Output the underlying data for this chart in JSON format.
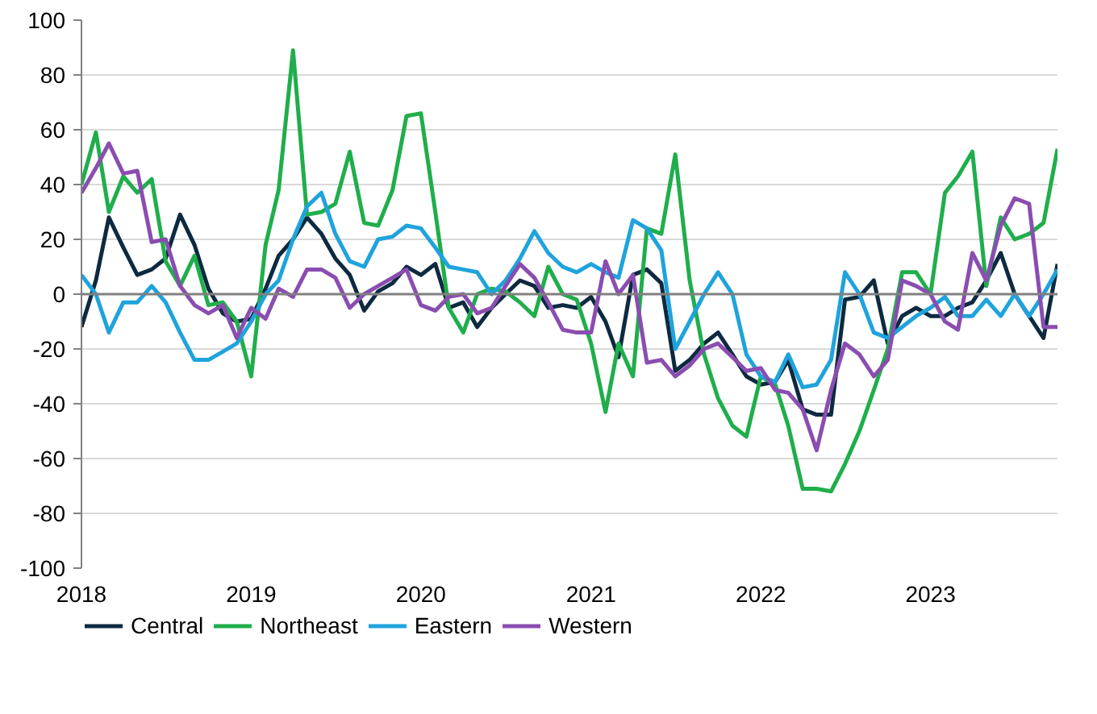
{
  "chart_data": {
    "type": "line",
    "x": [
      "2018-01",
      "2018-02",
      "2018-03",
      "2018-04",
      "2018-05",
      "2018-06",
      "2018-07",
      "2018-08",
      "2018-09",
      "2018-10",
      "2018-11",
      "2018-12",
      "2019-01",
      "2019-02",
      "2019-03",
      "2019-04",
      "2019-05",
      "2019-06",
      "2019-07",
      "2019-08",
      "2019-09",
      "2019-10",
      "2019-11",
      "2019-12",
      "2020-01",
      "2020-02",
      "2020-03",
      "2020-04",
      "2020-05",
      "2020-06",
      "2020-07",
      "2020-08",
      "2020-09",
      "2020-10",
      "2020-11",
      "2020-12",
      "2021-01",
      "2021-02",
      "2021-03",
      "2021-04",
      "2021-05",
      "2021-06",
      "2021-07",
      "2021-08",
      "2021-09",
      "2021-10",
      "2021-11",
      "2021-12",
      "2022-01",
      "2022-02",
      "2022-03",
      "2022-04",
      "2022-05",
      "2022-06",
      "2022-07",
      "2022-08",
      "2022-09",
      "2022-10",
      "2022-11",
      "2022-12",
      "2023-01",
      "2023-02",
      "2023-03",
      "2023-04",
      "2023-05",
      "2023-06",
      "2023-07",
      "2023-08",
      "2023-09",
      "2023-10"
    ],
    "xlim": [
      "2018-01",
      "2023-10"
    ],
    "xticks": [
      {
        "value": "2018-01",
        "label": "2018"
      },
      {
        "value": "2019-01",
        "label": "2019"
      },
      {
        "value": "2020-01",
        "label": "2020"
      },
      {
        "value": "2021-01",
        "label": "2021"
      },
      {
        "value": "2022-01",
        "label": "2022"
      },
      {
        "value": "2023-01",
        "label": "2023"
      }
    ],
    "ylim": [
      -100,
      100
    ],
    "yticks": [
      -100,
      -80,
      -60,
      -40,
      -20,
      0,
      20,
      40,
      60,
      80,
      100
    ],
    "grid": "y",
    "legend": "bottom",
    "line_style": "solid",
    "ref_lines": [
      {
        "axis": "y",
        "value": 0,
        "label": null,
        "color": "#808080"
      }
    ],
    "series": [
      {
        "name": "Central",
        "color": "#0d2a40",
        "values": [
          -12,
          5,
          28,
          17,
          7,
          9,
          13,
          29,
          18,
          2,
          -7,
          -10,
          -9,
          2,
          14,
          20,
          28,
          22,
          13,
          7,
          -6,
          1,
          4,
          10,
          7,
          11,
          -5,
          -3,
          -12,
          -5,
          0,
          5,
          3,
          -5,
          -4,
          -5,
          -1,
          -10,
          -23,
          7,
          9,
          4,
          -28,
          -24,
          -18,
          -14,
          -22,
          -30,
          -33,
          -32,
          -24,
          -42,
          -44,
          -44,
          -2,
          -1,
          5,
          -18,
          -8,
          -5,
          -8,
          -8,
          -5,
          -3,
          5,
          15,
          0,
          -8,
          -16,
          11
        ]
      },
      {
        "name": "Northeast",
        "color": "#1fae4b",
        "values": [
          40,
          59,
          30,
          43,
          37,
          42,
          12,
          3,
          14,
          -4,
          -3,
          -10,
          -30,
          18,
          38,
          89,
          29,
          30,
          33,
          52,
          26,
          25,
          38,
          65,
          66,
          30,
          -5,
          -14,
          0,
          2,
          1,
          -3,
          -8,
          10,
          0,
          -2,
          -18,
          -43,
          -18,
          -30,
          24,
          22,
          51,
          5,
          -22,
          -38,
          -48,
          -52,
          -30,
          -33,
          -48,
          -71,
          -71,
          -72,
          -62,
          -50,
          -35,
          -20,
          8,
          8,
          0,
          37,
          43,
          52,
          3,
          28,
          20,
          22,
          26,
          53
        ]
      },
      {
        "name": "Eastern",
        "color": "#1fa3dc",
        "values": [
          7,
          0,
          -14,
          -3,
          -3,
          3,
          -3,
          -14,
          -24,
          -24,
          -21,
          -18,
          -10,
          0,
          5,
          20,
          32,
          37,
          22,
          12,
          10,
          20,
          21,
          25,
          24,
          17,
          10,
          9,
          8,
          0,
          5,
          13,
          23,
          15,
          10,
          8,
          11,
          8,
          6,
          27,
          24,
          16,
          -20,
          -10,
          0,
          8,
          0,
          -22,
          -30,
          -32,
          -22,
          -34,
          -33,
          -24,
          8,
          0,
          -14,
          -16,
          -12,
          -8,
          -5,
          -1,
          -8,
          -8,
          -2,
          -8,
          0,
          -8,
          0,
          9
        ]
      },
      {
        "name": "Western",
        "color": "#8a4db0",
        "values": [
          37,
          46,
          55,
          44,
          45,
          19,
          20,
          3,
          -4,
          -7,
          -4,
          -16,
          -5,
          -9,
          2,
          -1,
          9,
          9,
          6,
          -5,
          0,
          3,
          6,
          9,
          -4,
          -6,
          -1,
          0,
          -7,
          -5,
          3,
          11,
          6,
          -3,
          -13,
          -14,
          -14,
          12,
          0,
          7,
          -25,
          -24,
          -30,
          -26,
          -20,
          -18,
          -23,
          -28,
          -27,
          -35,
          -36,
          -42,
          -57,
          -35,
          -18,
          -22,
          -30,
          -24,
          5,
          3,
          0,
          -10,
          -13,
          15,
          5,
          25,
          35,
          33,
          -12,
          -12
        ]
      }
    ]
  }
}
